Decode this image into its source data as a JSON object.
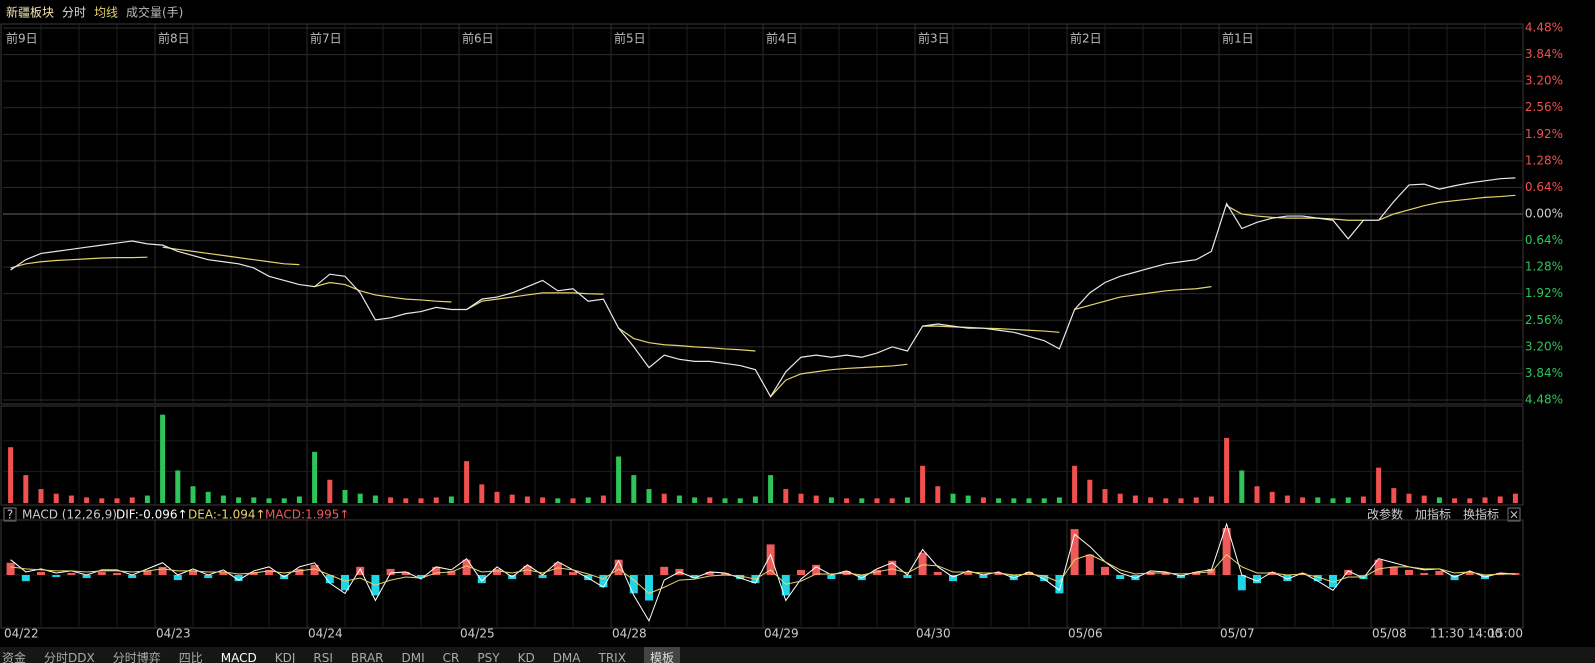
{
  "toolbar": {
    "title": "新疆板块",
    "items": [
      "分时",
      "均线",
      "成交量(手)"
    ]
  },
  "indicator_bar": {
    "help": "?",
    "name": "MACD (12,26,9)",
    "dif": "DIF:-0.096↑",
    "dea": "DEA:-1.094↑",
    "macd": "MACD:1.995↑",
    "buttons": [
      "改参数",
      "加指标",
      "换指标"
    ],
    "close": "×"
  },
  "tabs": [
    "资金",
    "分时DDX",
    "分时博弈",
    "四比",
    "MACD",
    "KDJ",
    "RSI",
    "BRAR",
    "DMI",
    "CR",
    "PSY",
    "KD",
    "DMA",
    "TRIX",
    "模板"
  ],
  "chart_data": {
    "type": "line",
    "ylim": [
      -4.48,
      4.48
    ],
    "yticks": [
      {
        "value": 4.48,
        "label": "4.48%"
      },
      {
        "value": 3.84,
        "label": "3.84%"
      },
      {
        "value": 3.2,
        "label": "3.20%"
      },
      {
        "value": 2.56,
        "label": "2.56%"
      },
      {
        "value": 1.92,
        "label": "1.92%"
      },
      {
        "value": 1.28,
        "label": "1.28%"
      },
      {
        "value": 0.64,
        "label": "0.64%"
      },
      {
        "value": 0,
        "label": "0.00%"
      },
      {
        "value": -0.64,
        "label": "0.64%"
      },
      {
        "value": -1.28,
        "label": "1.28%"
      },
      {
        "value": -1.92,
        "label": "1.92%"
      },
      {
        "value": -2.56,
        "label": "2.56%"
      },
      {
        "value": -3.2,
        "label": "3.20%"
      },
      {
        "value": -3.84,
        "label": "3.84%"
      },
      {
        "value": -4.48,
        "label": "4.48%"
      }
    ],
    "volume_ylim": [
      0,
      100
    ],
    "macd_ylim": [
      -5,
      5
    ],
    "colors": {
      "price": "#e8e8e8",
      "avg": "#e6d36a",
      "up": "#f05050",
      "down": "#2ec45a",
      "macd_up": "#f05a5a",
      "macd_down": "#1ed6e6",
      "dif": "#ffffff",
      "dea": "#e6d36a"
    },
    "days": [
      {
        "label": "前9日",
        "date": "04/22",
        "price": [
          -1.35,
          -1.1,
          -0.95,
          -0.9,
          -0.85,
          -0.8,
          -0.75,
          -0.7,
          -0.65,
          -0.72
        ],
        "avg": [
          -1.3,
          -1.2,
          -1.15,
          -1.12,
          -1.1,
          -1.08,
          -1.06,
          -1.05,
          -1.05,
          -1.04
        ],
        "volume": [
          60,
          30,
          15,
          10,
          8,
          6,
          5,
          5,
          6,
          8
        ],
        "macd": [
          1.2,
          -0.6,
          0.3,
          -0.2,
          0.2,
          -0.3,
          0.3,
          0.2,
          -0.3,
          0.4
        ],
        "dif": [
          1.5,
          0.3,
          0.6,
          0.2,
          0.4,
          0.0,
          0.5,
          0.5,
          0.0,
          0.6
        ],
        "dea": [
          0.8,
          0.6,
          0.5,
          0.4,
          0.4,
          0.3,
          0.4,
          0.4,
          0.3,
          0.4
        ]
      },
      {
        "label": "前8日",
        "date": "04/23",
        "price": [
          -0.75,
          -0.9,
          -1.0,
          -1.1,
          -1.15,
          -1.2,
          -1.3,
          -1.5,
          -1.6,
          -1.7
        ],
        "avg": [
          -0.8,
          -0.85,
          -0.9,
          -0.95,
          -1.0,
          -1.05,
          -1.1,
          -1.15,
          -1.2,
          -1.22
        ],
        "volume": [
          95,
          35,
          18,
          12,
          8,
          6,
          6,
          5,
          5,
          7
        ],
        "macd": [
          0.8,
          -0.5,
          0.4,
          -0.3,
          0.3,
          -0.6,
          0.3,
          0.5,
          -0.4,
          0.6
        ],
        "dif": [
          1.2,
          0.0,
          0.6,
          0.0,
          0.5,
          -0.5,
          0.4,
          0.8,
          -0.2,
          0.8
        ],
        "dea": [
          0.6,
          0.4,
          0.4,
          0.3,
          0.3,
          0.1,
          0.2,
          0.4,
          0.2,
          0.4
        ]
      },
      {
        "label": "前7日",
        "date": "04/24",
        "price": [
          -1.75,
          -1.45,
          -1.5,
          -1.9,
          -2.55,
          -2.5,
          -2.4,
          -2.35,
          -2.25,
          -2.3
        ],
        "avg": [
          -1.75,
          -1.65,
          -1.7,
          -1.85,
          -1.95,
          -2.0,
          -2.05,
          -2.07,
          -2.1,
          -2.12
        ],
        "volume": [
          55,
          25,
          14,
          10,
          8,
          6,
          5,
          5,
          6,
          7
        ],
        "macd": [
          1.0,
          -0.8,
          -1.5,
          0.8,
          -2.0,
          0.6,
          0.3,
          -0.3,
          0.8,
          0.4
        ],
        "dif": [
          1.2,
          -0.8,
          -1.8,
          0.6,
          -2.5,
          0.2,
          0.3,
          -0.4,
          0.8,
          0.5
        ],
        "dea": [
          0.6,
          0.0,
          -0.6,
          -0.3,
          -1.0,
          -0.5,
          -0.2,
          -0.3,
          0.2,
          0.3
        ]
      },
      {
        "label": "前6日",
        "date": "04/25",
        "price": [
          -2.3,
          -2.05,
          -2.0,
          -1.9,
          -1.75,
          -1.6,
          -1.85,
          -1.8,
          -2.1,
          -2.05
        ],
        "avg": [
          -2.3,
          -2.1,
          -2.05,
          -2.0,
          -1.95,
          -1.9,
          -1.9,
          -1.9,
          -1.92,
          -1.93
        ],
        "volume": [
          45,
          20,
          12,
          9,
          7,
          6,
          5,
          5,
          6,
          8
        ],
        "macd": [
          1.5,
          -0.8,
          0.6,
          -0.4,
          0.9,
          -0.3,
          1.2,
          0.3,
          -0.5,
          -1.2
        ],
        "dif": [
          1.6,
          -0.6,
          0.8,
          -0.2,
          1.0,
          0.0,
          1.3,
          0.5,
          -0.3,
          -1.2
        ],
        "dea": [
          0.9,
          0.3,
          0.4,
          0.2,
          0.5,
          0.2,
          0.7,
          0.5,
          0.1,
          -0.4
        ]
      },
      {
        "label": "前5日",
        "date": "04/28",
        "price": [
          -2.75,
          -3.2,
          -3.7,
          -3.4,
          -3.5,
          -3.55,
          -3.55,
          -3.6,
          -3.65,
          -3.75
        ],
        "avg": [
          -2.75,
          -3.0,
          -3.1,
          -3.15,
          -3.17,
          -3.2,
          -3.22,
          -3.25,
          -3.27,
          -3.3
        ],
        "volume": [
          50,
          30,
          15,
          10,
          8,
          6,
          6,
          5,
          5,
          7
        ],
        "macd": [
          1.5,
          -1.8,
          -2.5,
          0.8,
          0.6,
          -0.3,
          0.3,
          0.2,
          -0.4,
          -0.8
        ],
        "dif": [
          1.4,
          -2.0,
          -4.5,
          -0.5,
          0.3,
          -0.3,
          0.3,
          0.2,
          -0.3,
          -0.8
        ],
        "dea": [
          0.6,
          -0.5,
          -1.8,
          -1.2,
          -0.5,
          -0.4,
          -0.1,
          0.0,
          -0.1,
          -0.4
        ]
      },
      {
        "label": "前4日",
        "date": "04/29",
        "price": [
          -4.4,
          -3.8,
          -3.45,
          -3.4,
          -3.45,
          -3.4,
          -3.45,
          -3.35,
          -3.2,
          -3.3
        ],
        "avg": [
          -4.4,
          -4.0,
          -3.85,
          -3.8,
          -3.75,
          -3.72,
          -3.7,
          -3.68,
          -3.66,
          -3.62
        ],
        "volume": [
          30,
          15,
          10,
          8,
          6,
          5,
          5,
          5,
          5,
          6
        ],
        "macd": [
          3.0,
          -2.0,
          0.5,
          1.0,
          -0.4,
          0.4,
          -0.5,
          0.5,
          1.4,
          -0.3
        ],
        "dif": [
          2.0,
          -2.5,
          -0.4,
          0.8,
          0.0,
          0.4,
          -0.3,
          0.6,
          1.2,
          0.0
        ],
        "dea": [
          0.5,
          -0.9,
          -0.6,
          0.1,
          0.1,
          0.2,
          0.0,
          0.3,
          0.6,
          0.2
        ]
      },
      {
        "label": "前3日",
        "date": "04/30",
        "price": [
          -2.7,
          -2.65,
          -2.7,
          -2.75,
          -2.75,
          -2.8,
          -2.85,
          -2.95,
          -3.05,
          -3.25
        ],
        "avg": [
          -2.7,
          -2.7,
          -2.72,
          -2.73,
          -2.75,
          -2.76,
          -2.78,
          -2.8,
          -2.82,
          -2.85
        ],
        "volume": [
          40,
          18,
          10,
          8,
          6,
          5,
          5,
          5,
          5,
          6
        ],
        "macd": [
          2.2,
          0.3,
          -0.6,
          0.3,
          -0.3,
          0.2,
          -0.5,
          0.3,
          -0.6,
          -1.8
        ],
        "dif": [
          2.5,
          0.8,
          -0.2,
          0.4,
          0.0,
          0.3,
          -0.3,
          0.3,
          -0.4,
          -1.5
        ],
        "dea": [
          1.0,
          0.9,
          0.3,
          0.3,
          0.2,
          0.2,
          0.0,
          0.1,
          -0.1,
          -0.7
        ]
      },
      {
        "label": "前2日",
        "date": "05/06",
        "price": [
          -2.3,
          -1.9,
          -1.65,
          -1.5,
          -1.4,
          -1.3,
          -1.2,
          -1.15,
          -1.1,
          -0.9
        ],
        "avg": [
          -2.3,
          -2.2,
          -2.1,
          -2.0,
          -1.95,
          -1.9,
          -1.85,
          -1.82,
          -1.8,
          -1.75
        ],
        "volume": [
          40,
          25,
          15,
          10,
          8,
          6,
          5,
          5,
          6,
          7
        ],
        "macd": [
          4.5,
          2.0,
          0.8,
          -0.4,
          -0.5,
          0.3,
          0.2,
          -0.3,
          0.3,
          0.6
        ],
        "dif": [
          4.0,
          2.8,
          1.3,
          0.2,
          -0.3,
          0.4,
          0.3,
          -0.1,
          0.3,
          0.5
        ],
        "dea": [
          1.5,
          2.0,
          1.3,
          0.5,
          0.1,
          0.2,
          0.2,
          0.1,
          0.2,
          0.3
        ]
      },
      {
        "label": "前1日",
        "date": "05/07",
        "price": [
          0.25,
          -0.35,
          -0.2,
          -0.1,
          -0.05,
          -0.05,
          -0.1,
          -0.15,
          -0.6,
          -0.15
        ],
        "avg": [
          0.2,
          0.0,
          -0.05,
          -0.08,
          -0.1,
          -0.1,
          -0.1,
          -0.12,
          -0.15,
          -0.15
        ],
        "volume": [
          70,
          35,
          18,
          12,
          8,
          6,
          6,
          5,
          6,
          7
        ],
        "macd": [
          4.6,
          -1.5,
          -0.8,
          0.3,
          -0.6,
          0.2,
          -0.6,
          -1.2,
          0.5,
          -0.4
        ],
        "dif": [
          5.0,
          0.0,
          -0.6,
          0.3,
          -0.4,
          0.2,
          -0.6,
          -1.5,
          0.4,
          -0.3
        ],
        "dea": [
          2.0,
          0.8,
          0.2,
          0.2,
          0.0,
          0.1,
          -0.2,
          -0.7,
          -0.2,
          -0.2
        ]
      },
      {
        "label": null,
        "date": "05/08",
        "price": [
          -0.15,
          0.3,
          0.7,
          0.72,
          0.6,
          0.68,
          0.75,
          0.8,
          0.85,
          0.87
        ],
        "avg": [
          -0.15,
          0.0,
          0.1,
          0.2,
          0.28,
          0.32,
          0.36,
          0.4,
          0.42,
          0.45
        ],
        "volume": [
          38,
          16,
          10,
          8,
          6,
          5,
          5,
          6,
          7,
          10
        ],
        "macd": [
          1.5,
          0.8,
          0.5,
          0.2,
          0.4,
          -0.5,
          0.3,
          -0.4,
          0.2,
          0.2
        ],
        "dif": [
          1.6,
          1.2,
          0.8,
          0.5,
          0.6,
          -0.2,
          0.4,
          -0.2,
          0.2,
          0.1
        ],
        "dea": [
          0.6,
          0.8,
          0.8,
          0.6,
          0.6,
          0.2,
          0.3,
          0.0,
          0.1,
          0.1
        ]
      }
    ],
    "time_labels": [
      "11:30",
      "14:00",
      "15:00"
    ]
  }
}
